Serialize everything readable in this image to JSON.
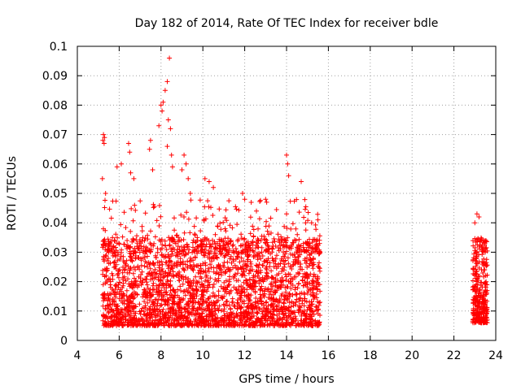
{
  "chart_data": {
    "type": "scatter",
    "title": "Day 182 of 2014, Rate Of TEC Index for receiver bdle",
    "xlabel": "GPS time / hours",
    "ylabel": "ROTI / TECUs",
    "xlim": [
      4,
      24
    ],
    "ylim": [
      0,
      0.1
    ],
    "xticks": [
      4,
      6,
      8,
      10,
      12,
      14,
      16,
      18,
      20,
      22,
      24
    ],
    "yticks": [
      0,
      0.01,
      0.02,
      0.03,
      0.04,
      0.05,
      0.06,
      0.07,
      0.08,
      0.09,
      0.1
    ],
    "xtick_labels": [
      "4",
      "6",
      "8",
      "10",
      "12",
      "14",
      "16",
      "18",
      "20",
      "22",
      "24"
    ],
    "ytick_labels": [
      "0",
      "0.01",
      "0.02",
      "0.03",
      "0.04",
      "0.05",
      "0.06",
      "0.07",
      "0.08",
      "0.09",
      "0.1"
    ],
    "grid": true,
    "marker": "+",
    "color": "#ff0000",
    "series": [
      {
        "name": "ROTI",
        "points": [
          [
            5.22,
            0.068
          ],
          [
            5.25,
            0.07
          ],
          [
            5.3,
            0.069
          ],
          [
            5.28,
            0.067
          ],
          [
            5.2,
            0.055
          ],
          [
            5.35,
            0.05
          ],
          [
            5.9,
            0.059
          ],
          [
            6.1,
            0.06
          ],
          [
            6.45,
            0.067
          ],
          [
            6.5,
            0.064
          ],
          [
            6.55,
            0.057
          ],
          [
            6.7,
            0.055
          ],
          [
            7.5,
            0.068
          ],
          [
            7.45,
            0.065
          ],
          [
            7.6,
            0.058
          ],
          [
            7.9,
            0.073
          ],
          [
            8.0,
            0.08
          ],
          [
            8.05,
            0.078
          ],
          [
            8.1,
            0.081
          ],
          [
            8.2,
            0.085
          ],
          [
            8.3,
            0.088
          ],
          [
            8.4,
            0.096
          ],
          [
            8.35,
            0.075
          ],
          [
            8.45,
            0.072
          ],
          [
            8.3,
            0.066
          ],
          [
            8.5,
            0.063
          ],
          [
            8.55,
            0.059
          ],
          [
            9.1,
            0.063
          ],
          [
            9.2,
            0.06
          ],
          [
            9.0,
            0.058
          ],
          [
            9.3,
            0.055
          ],
          [
            9.4,
            0.05
          ],
          [
            10.1,
            0.055
          ],
          [
            10.3,
            0.054
          ],
          [
            10.5,
            0.052
          ],
          [
            11.9,
            0.05
          ],
          [
            12.0,
            0.048
          ],
          [
            13.0,
            0.048
          ],
          [
            13.05,
            0.047
          ],
          [
            14.0,
            0.063
          ],
          [
            14.05,
            0.06
          ],
          [
            14.1,
            0.056
          ],
          [
            14.7,
            0.054
          ],
          [
            14.0,
            0.043
          ],
          [
            15.5,
            0.041
          ],
          [
            15.2,
            0.04
          ],
          [
            23.1,
            0.043
          ],
          [
            23.2,
            0.042
          ],
          [
            23.0,
            0.04
          ],
          [
            23.45,
            0.033
          ],
          [
            23.5,
            0.03
          ]
        ]
      }
    ],
    "clusters": [
      {
        "x_start": 5.2,
        "x_end": 15.6,
        "y_min": 0.005,
        "y_max": 0.035,
        "count": 2600
      },
      {
        "x_start": 5.2,
        "x_end": 15.6,
        "y_min": 0.03,
        "y_max": 0.048,
        "count": 230
      },
      {
        "x_start": 22.9,
        "x_end": 23.6,
        "y_min": 0.006,
        "y_max": 0.035,
        "count": 320
      }
    ]
  }
}
